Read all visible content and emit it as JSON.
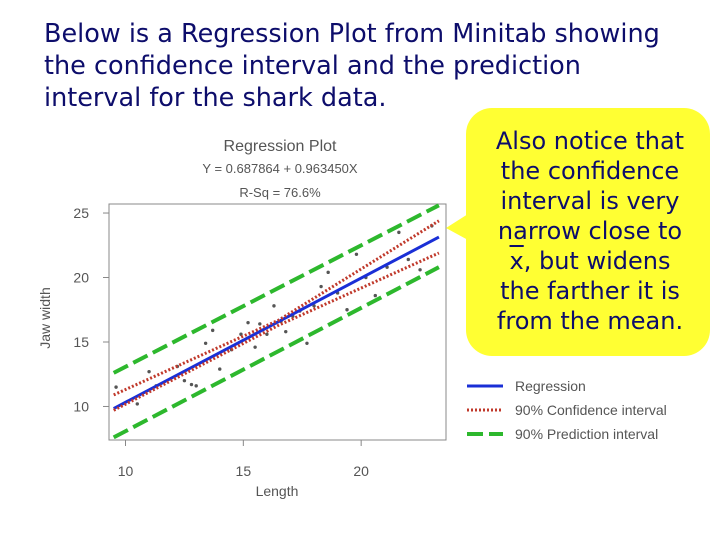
{
  "slide": {
    "lines": [
      "Below is a Regression Plot from Minitab showing",
      "the confidence interval and the prediction",
      "interval for the shark data."
    ]
  },
  "callout": {
    "line1": "Also notice that",
    "line2": "the confidence",
    "line3": "interval is very",
    "line4": "narrow close to",
    "xbar": "x",
    "line5_rest": ", but widens",
    "line6": "the farther it is",
    "line7": "from the mean."
  },
  "colors": {
    "text": "#0d0d6b",
    "callout_bg": "#ffff33",
    "regression": "#1a2fd6",
    "confidence": "#c0392b",
    "prediction": "#2db82d",
    "points": "#555555"
  },
  "chart_data": {
    "type": "scatter",
    "title": "Regression Plot",
    "equation": "Y = 0.687864 + 0.963450X",
    "rsq": "R-Sq = 76.6%",
    "xlabel": "Length",
    "ylabel": "Jaw width",
    "xlim": [
      9.3,
      23.6
    ],
    "ylim": [
      7.4,
      25.7
    ],
    "xticks": [
      10,
      15,
      20
    ],
    "yticks": [
      10,
      15,
      20,
      25
    ],
    "regression": {
      "intercept": 0.687864,
      "slope": 0.96345,
      "x_range": [
        9.5,
        23.3
      ]
    },
    "confidence_band": {
      "lower": [
        [
          9.5,
          9.7
        ],
        [
          16.5,
          16.3
        ],
        [
          23.3,
          21.9
        ]
      ],
      "upper": [
        [
          9.5,
          10.9
        ],
        [
          16.5,
          16.7
        ],
        [
          23.3,
          24.4
        ]
      ]
    },
    "prediction_band": {
      "lower": [
        [
          9.5,
          7.6
        ],
        [
          23.3,
          20.8
        ]
      ],
      "upper": [
        [
          9.5,
          12.6
        ],
        [
          23.3,
          25.6
        ]
      ]
    },
    "points": [
      [
        9.6,
        11.5
      ],
      [
        10.5,
        10.2
      ],
      [
        11.0,
        12.7
      ],
      [
        11.3,
        11.6
      ],
      [
        12.2,
        13.1
      ],
      [
        12.5,
        12.0
      ],
      [
        12.8,
        11.7
      ],
      [
        13.0,
        11.6
      ],
      [
        13.4,
        14.9
      ],
      [
        13.7,
        15.9
      ],
      [
        14.0,
        12.9
      ],
      [
        14.5,
        14.4
      ],
      [
        14.9,
        15.6
      ],
      [
        15.2,
        16.5
      ],
      [
        15.5,
        14.6
      ],
      [
        15.7,
        16.4
      ],
      [
        16.0,
        15.6
      ],
      [
        16.3,
        17.8
      ],
      [
        16.6,
        16.6
      ],
      [
        16.8,
        15.8
      ],
      [
        17.1,
        17.0
      ],
      [
        17.4,
        17.4
      ],
      [
        17.7,
        14.9
      ],
      [
        18.0,
        17.8
      ],
      [
        18.3,
        19.3
      ],
      [
        18.6,
        20.4
      ],
      [
        19.0,
        18.8
      ],
      [
        19.4,
        17.5
      ],
      [
        19.8,
        21.8
      ],
      [
        20.2,
        20.0
      ],
      [
        20.6,
        18.6
      ],
      [
        21.1,
        20.8
      ],
      [
        21.6,
        23.5
      ],
      [
        22.0,
        21.4
      ],
      [
        22.5,
        20.6
      ],
      [
        23.0,
        24.0
      ]
    ],
    "legend": [
      {
        "name": "Regression",
        "style": "solid"
      },
      {
        "name": "90% Confidence interval",
        "style": "dotted"
      },
      {
        "name": "90% Prediction interval",
        "style": "dashed"
      }
    ],
    "grid": false,
    "legend_position": "bottom-right"
  }
}
